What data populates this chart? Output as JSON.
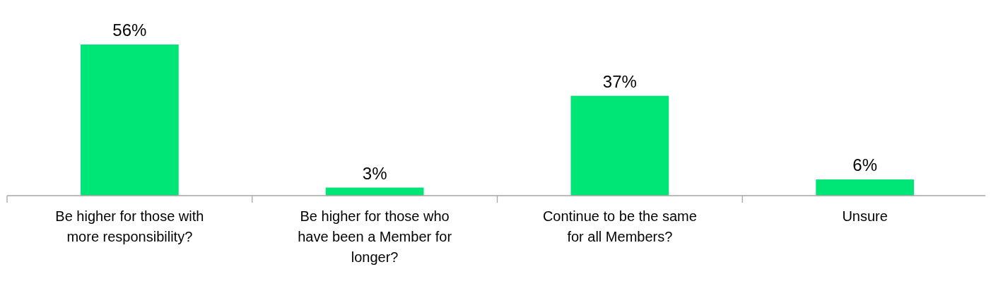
{
  "chart_data": {
    "type": "bar",
    "categories": [
      "Be higher for those with more responsibility?",
      "Be higher for those who have been a Member for longer?",
      "Continue to be the same for all Members?",
      "Unsure"
    ],
    "values": [
      56,
      3,
      37,
      6
    ],
    "value_labels": [
      "56%",
      "3%",
      "37%",
      "6%"
    ],
    "color": "#00e676"
  }
}
